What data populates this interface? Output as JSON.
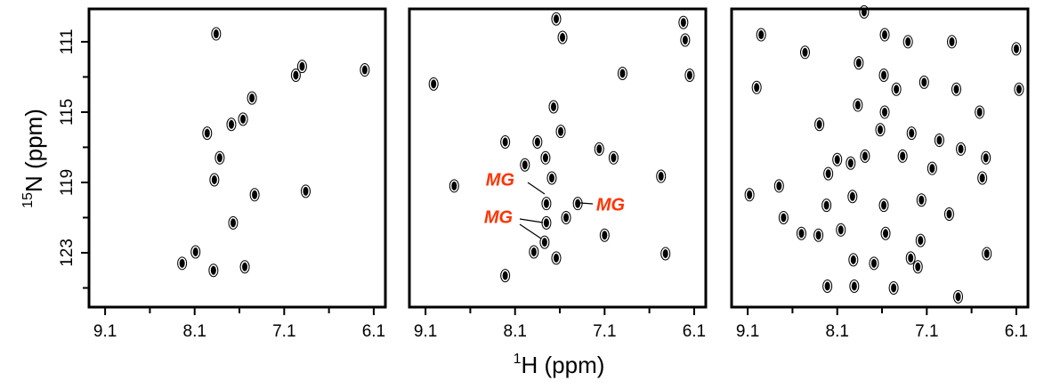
{
  "chart_data": [
    {
      "type": "scatter",
      "color": "#000000",
      "ylabel_sup": "15",
      "ylabel": "N (ppm)",
      "x": [
        7.86,
        6.9,
        6.97,
        6.2,
        7.46,
        7.69,
        7.56,
        7.96,
        7.82,
        7.88,
        7.43,
        6.86,
        7.67,
        8.09,
        8.24,
        7.89,
        7.54
      ],
      "values": [
        110.55,
        112.4,
        112.9,
        112.6,
        114.2,
        115.7,
        115.4,
        116.2,
        117.6,
        118.85,
        119.7,
        119.5,
        121.3,
        122.95,
        123.6,
        124.0,
        123.8
      ],
      "xlim": [
        9.28,
        5.97
      ],
      "ylim": [
        109.13,
        126.09
      ],
      "xticks": [
        9.1,
        8.1,
        7.1,
        6.1
      ],
      "minor_xticks": [
        8.6,
        7.6,
        6.6
      ],
      "yticks": [
        111,
        115,
        119,
        123
      ],
      "minor_yticks": [
        113,
        117,
        121,
        125
      ]
    },
    {
      "type": "scatter",
      "color": "#000000",
      "xlabel_sup": "1",
      "xlabel": "H (ppm)",
      "x": [
        7.64,
        6.22,
        7.57,
        6.2,
        6.9,
        6.15,
        9.01,
        7.67,
        7.59,
        8.21,
        7.85,
        7.16,
        7.76,
        7.0,
        7.99,
        7.69,
        6.47,
        8.78,
        7.75,
        7.4,
        7.75,
        7.53,
        7.1,
        7.77,
        7.64,
        7.89,
        8.21,
        6.42
      ],
      "values": [
        109.7,
        109.9,
        110.75,
        110.9,
        112.8,
        112.9,
        113.4,
        114.7,
        116.1,
        116.7,
        116.7,
        117.1,
        117.6,
        117.6,
        118.0,
        118.75,
        118.65,
        119.2,
        120.2,
        120.2,
        121.3,
        121.0,
        122.0,
        122.4,
        123.3,
        122.95,
        124.3,
        123.05
      ],
      "xlim": [
        9.28,
        5.97
      ],
      "ylim": [
        109.13,
        126.09
      ],
      "xticks": [
        9.1,
        8.1,
        7.1,
        6.1
      ],
      "minor_xticks": [
        8.6,
        7.6,
        6.6
      ],
      "annotations": [
        "MG",
        "MG",
        "MG"
      ],
      "annotation_color": "#ff3300"
    },
    {
      "type": "scatter",
      "color": "#000000",
      "x": [
        7.8,
        8.95,
        8.46,
        7.57,
        7.31,
        6.82,
        6.1,
        6.77,
        6.07,
        7.86,
        7.58,
        7.44,
        7.13,
        9.0,
        7.87,
        8.3,
        7.57,
        7.62,
        6.51,
        7.27,
        6.96,
        6.72,
        6.44,
        8.1,
        7.95,
        7.79,
        7.37,
        7.04,
        8.2,
        6.48,
        8.75,
        9.08,
        8.22,
        7.93,
        7.58,
        7.16,
        6.85,
        8.7,
        8.5,
        8.06,
        7.56,
        7.17,
        8.31,
        6.43,
        7.92,
        7.69,
        7.28,
        7.2,
        8.21,
        7.91,
        7.47,
        6.75
      ],
      "values": [
        109.3,
        110.6,
        111.6,
        110.6,
        111.0,
        111.0,
        111.4,
        113.7,
        113.7,
        112.2,
        112.9,
        113.7,
        113.3,
        113.6,
        114.6,
        115.7,
        115.0,
        116.0,
        115.0,
        116.2,
        116.6,
        117.1,
        117.6,
        117.7,
        117.9,
        117.5,
        117.5,
        118.2,
        118.5,
        118.75,
        119.2,
        119.7,
        120.3,
        119.8,
        120.3,
        120.0,
        120.8,
        121.0,
        121.9,
        121.7,
        121.9,
        122.3,
        122.0,
        123.05,
        123.4,
        123.6,
        123.3,
        123.8,
        124.9,
        124.9,
        125.0,
        125.5
      ],
      "xlim": [
        9.28,
        5.97
      ],
      "ylim": [
        109.13,
        126.09
      ],
      "xticks": [
        9.1,
        8.1,
        7.1,
        6.1
      ],
      "minor_xticks": [
        8.6,
        7.6,
        6.6
      ]
    }
  ]
}
